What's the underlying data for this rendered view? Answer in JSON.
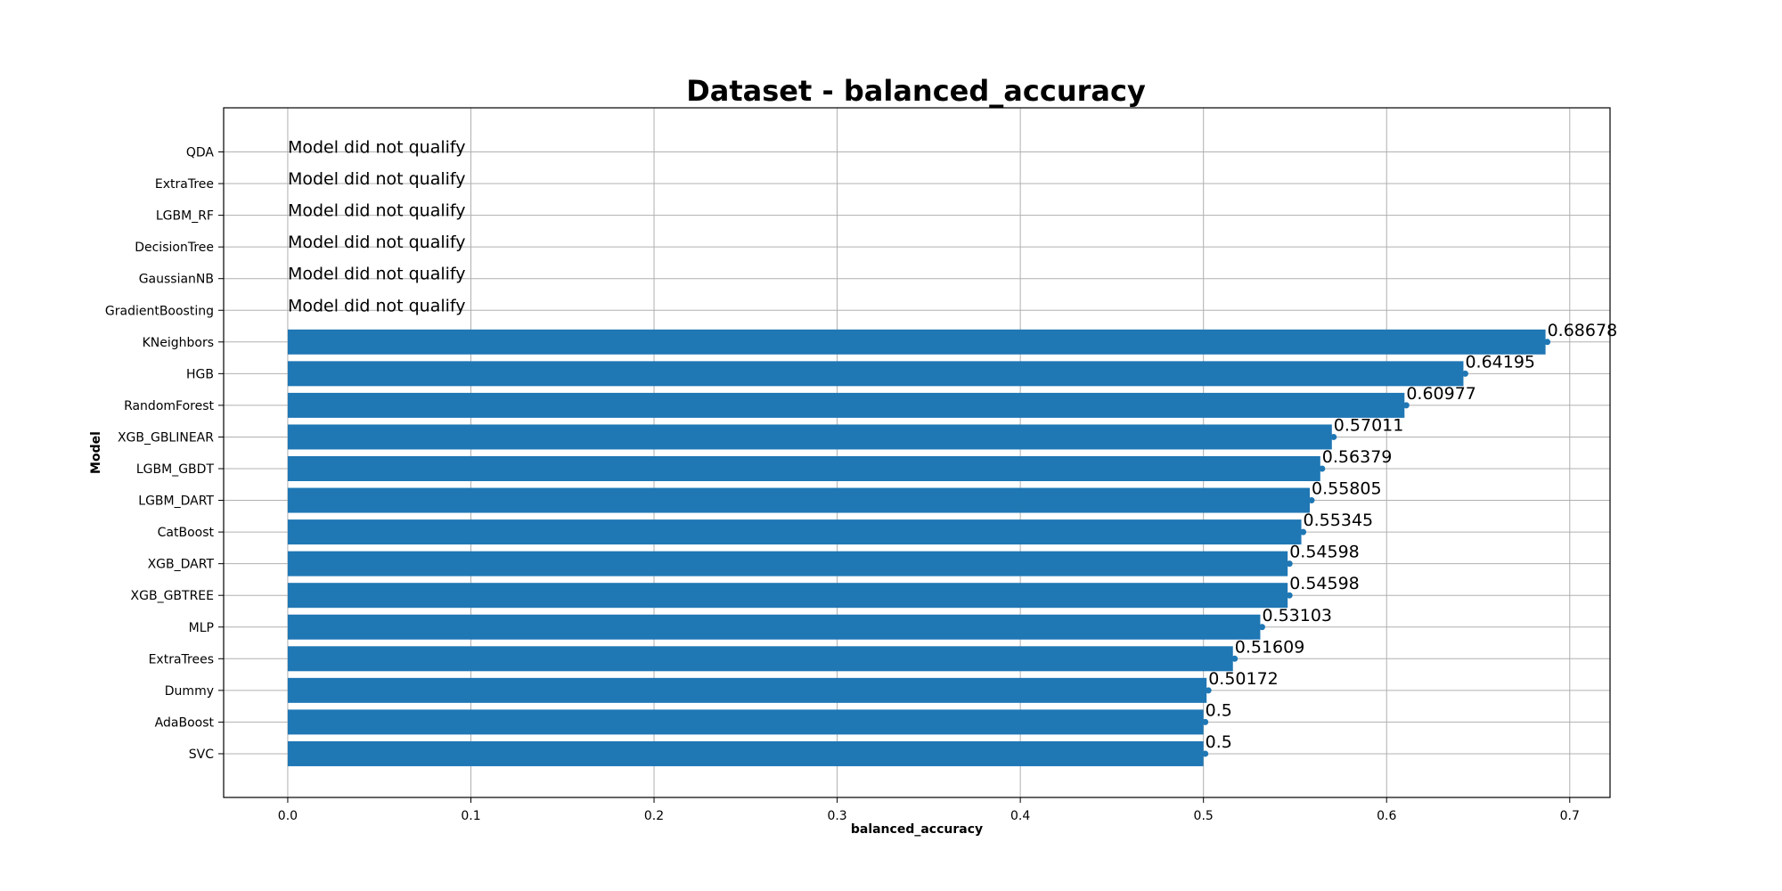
{
  "chart_data": {
    "type": "bar",
    "orientation": "horizontal",
    "title": "Dataset - balanced_accuracy",
    "xlabel": "balanced_accuracy",
    "ylabel": "Model",
    "xlim": [
      -0.035,
      0.722
    ],
    "xticks": [
      "0.0",
      "0.1",
      "0.2",
      "0.3",
      "0.4",
      "0.5",
      "0.6",
      "0.7"
    ],
    "xtick_values": [
      0.0,
      0.1,
      0.2,
      0.3,
      0.4,
      0.5,
      0.6,
      0.7
    ],
    "grid": true,
    "bar_color": "#1f77b4",
    "not_qualified_text": "Model did not qualify",
    "categories": [
      "QDA",
      "ExtraTree",
      "LGBM_RF",
      "DecisionTree",
      "GaussianNB",
      "GradientBoosting",
      "KNeighbors",
      "HGB",
      "RandomForest",
      "XGB_GBLINEAR",
      "LGBM_GBDT",
      "LGBM_DART",
      "CatBoost",
      "XGB_DART",
      "XGB_GBTREE",
      "MLP",
      "ExtraTrees",
      "Dummy",
      "AdaBoost",
      "SVC"
    ],
    "values": [
      null,
      null,
      null,
      null,
      null,
      null,
      0.68678,
      0.64195,
      0.60977,
      0.57011,
      0.56379,
      0.55805,
      0.55345,
      0.54598,
      0.54598,
      0.53103,
      0.51609,
      0.50172,
      0.5,
      0.5
    ],
    "value_labels": [
      "",
      "",
      "",
      "",
      "",
      "",
      "0.68678",
      "0.64195",
      "0.60977",
      "0.57011",
      "0.56379",
      "0.55805",
      "0.55345",
      "0.54598",
      "0.54598",
      "0.53103",
      "0.51609",
      "0.50172",
      "0.5",
      "0.5"
    ]
  }
}
